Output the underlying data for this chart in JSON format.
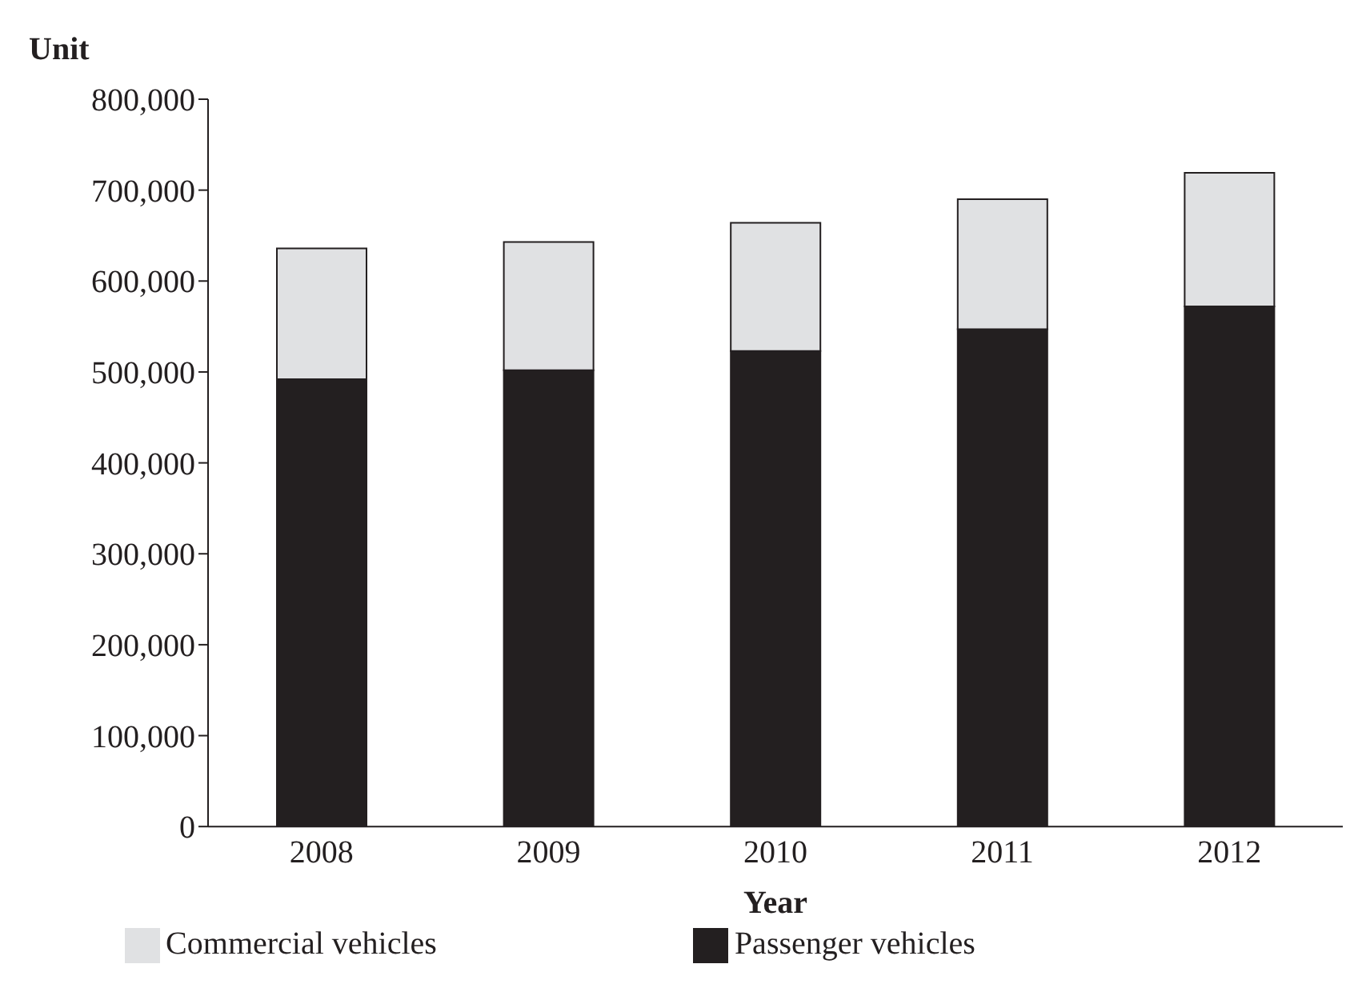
{
  "chart_data": {
    "type": "bar",
    "xlabel": "Year",
    "ylabel": "Unit",
    "categories": [
      "2008",
      "2009",
      "2010",
      "2011",
      "2012"
    ],
    "stacked": true,
    "series": [
      {
        "name": "Passenger vehicles",
        "color": "#231f20",
        "values": [
          492000,
          502000,
          523000,
          547000,
          572000
        ]
      },
      {
        "name": "Commercial vehicles",
        "color": "#e0e1e3",
        "values": [
          144000,
          141000,
          141000,
          143000,
          147000
        ]
      }
    ],
    "ylim": [
      0,
      800000
    ],
    "yticks": [
      0,
      {
        "value": 100000,
        "label": "100,000"
      },
      {
        "value": 200000,
        "label": "200,000"
      },
      {
        "value": 300000,
        "label": "300,000"
      },
      {
        "value": 400000,
        "label": "400,000"
      },
      {
        "value": 500000,
        "label": "500,000"
      },
      {
        "value": 600000,
        "label": "600,000"
      },
      {
        "value": 700000,
        "label": "700,000"
      },
      {
        "value": 800000,
        "label": "800,000"
      }
    ],
    "grid": false,
    "legend": "bottom"
  }
}
